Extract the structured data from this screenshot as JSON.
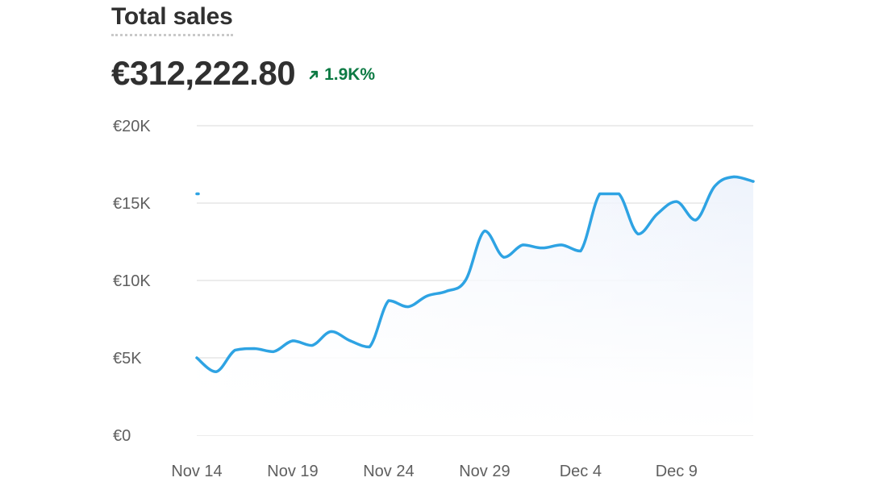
{
  "card": {
    "title": "Total sales",
    "value": "€312,222.80",
    "delta": "1.9K%",
    "delta_icon": "arrow-up-right-icon",
    "delta_color": "#0c7a43"
  },
  "colors": {
    "line": "#2ea3e3",
    "area_fill": "#eef3fc",
    "grid": "#e6e6e6",
    "text": "#303030",
    "axis_text": "#5f5f5f"
  },
  "chart_data": {
    "type": "area",
    "title": "Total sales",
    "xlabel": "",
    "ylabel": "",
    "grid": true,
    "legend": "none",
    "ylim": [
      0,
      20000
    ],
    "y_ticks": [
      {
        "value": 0,
        "label": "€0"
      },
      {
        "value": 5000,
        "label": "€5K"
      },
      {
        "value": 10000,
        "label": "€10K"
      },
      {
        "value": 15000,
        "label": "€15K"
      },
      {
        "value": 20000,
        "label": "€20K"
      }
    ],
    "x_ticks": [
      "Nov 14",
      "Nov 19",
      "Nov 24",
      "Nov 29",
      "Dec 4",
      "Dec 9"
    ],
    "x": [
      "Nov 14",
      "Nov 15",
      "Nov 16",
      "Nov 17",
      "Nov 18",
      "Nov 19",
      "Nov 20",
      "Nov 21",
      "Nov 22",
      "Nov 23",
      "Nov 24",
      "Nov 25",
      "Nov 26",
      "Nov 27",
      "Nov 28",
      "Nov 29",
      "Nov 30",
      "Dec 1",
      "Dec 2",
      "Dec 3",
      "Dec 4",
      "Dec 5",
      "Dec 6",
      "Dec 7",
      "Dec 8",
      "Dec 9",
      "Dec 10",
      "Dec 11",
      "Dec 12",
      "Dec 13"
    ],
    "series": [
      {
        "values": [
          5000,
          4100,
          5500,
          5600,
          5400,
          6100,
          5800,
          6700,
          6100,
          5700,
          8700,
          8300,
          9000,
          9300,
          10000,
          13200,
          11500,
          12300,
          12100,
          12300,
          11900,
          15600,
          15600,
          13000,
          14300,
          15100,
          13900,
          16100,
          16700,
          16400
        ]
      }
    ],
    "comparison_start": {
      "x": "Nov 14",
      "value": 15600
    }
  }
}
